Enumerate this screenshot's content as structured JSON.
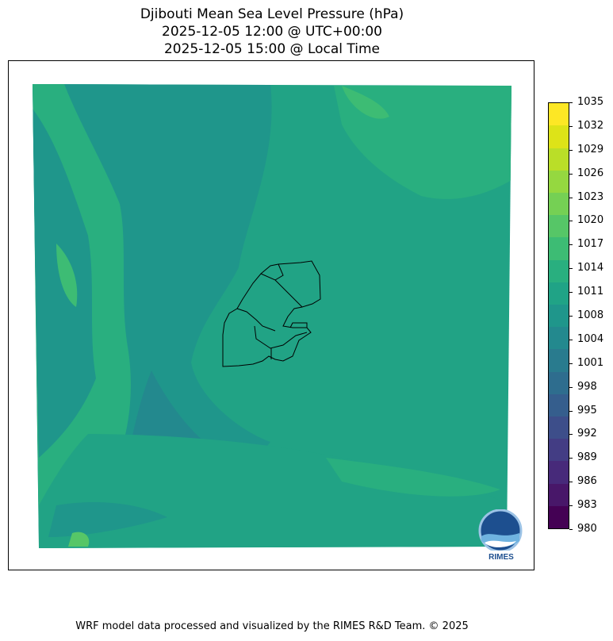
{
  "title": {
    "line1": "Djibouti Mean Sea Level Pressure (hPa)",
    "line2": "2025-12-05 12:00 @ UTC+00:00",
    "line3": "2025-12-05 15:00 @ Local Time"
  },
  "colorbar": {
    "ticks": [
      "980",
      "983",
      "986",
      "989",
      "992",
      "995",
      "998",
      "1001",
      "1004",
      "1008",
      "1011",
      "1014",
      "1017",
      "1020",
      "1023",
      "1026",
      "1029",
      "1032",
      "1035"
    ],
    "tick_top": "1035",
    "colormap": "viridis",
    "colors": [
      "#440154",
      "#481769",
      "#472a7a",
      "#433d84",
      "#3d4e8a",
      "#355e8d",
      "#2e6d8e",
      "#297b8e",
      "#23898e",
      "#1f968b",
      "#20a386",
      "#29af7f",
      "#3dbc74",
      "#56c667",
      "#75d054",
      "#95d840",
      "#bade28",
      "#dde318",
      "#fde725"
    ]
  },
  "map": {
    "region": "Djibouti",
    "variable": "Mean Sea Level Pressure",
    "unit": "hPa",
    "dominant_range": "1011-1017"
  },
  "logo": {
    "text": "RIMES"
  },
  "footer": "WRF model data processed and visualized by the RIMES R&D Team. © 2025"
}
